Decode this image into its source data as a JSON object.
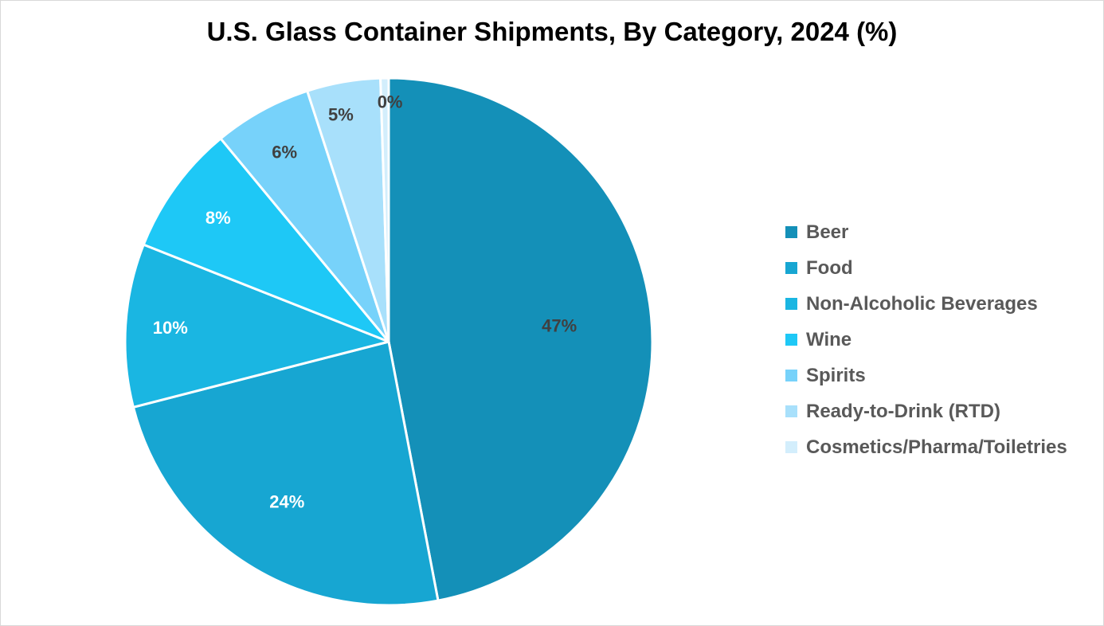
{
  "chart_data": {
    "type": "pie",
    "title": "U.S. Glass Container Shipments, By Category, 2024 (%)",
    "categories": [
      "Beer",
      "Food",
      "Non-Alcoholic Beverages",
      "Wine",
      "Spirits",
      "Ready-to-Drink (RTD)",
      "Cosmetics/Pharma/Toiletries"
    ],
    "values": [
      47,
      24,
      10,
      8,
      6,
      4.5,
      0.5
    ],
    "data_labels": [
      "47%",
      "24%",
      "10%",
      "8%",
      "6%",
      "5%",
      "0%"
    ],
    "colors": [
      "#1490b8",
      "#17a6d2",
      "#1ab6e2",
      "#1ec8f6",
      "#77d2fa",
      "#a8e0fb",
      "#d3eefc"
    ],
    "label_colors": [
      "#404040",
      "#ffffff",
      "#ffffff",
      "#ffffff",
      "#404040",
      "#404040",
      "#404040"
    ],
    "legend_position": "right"
  }
}
